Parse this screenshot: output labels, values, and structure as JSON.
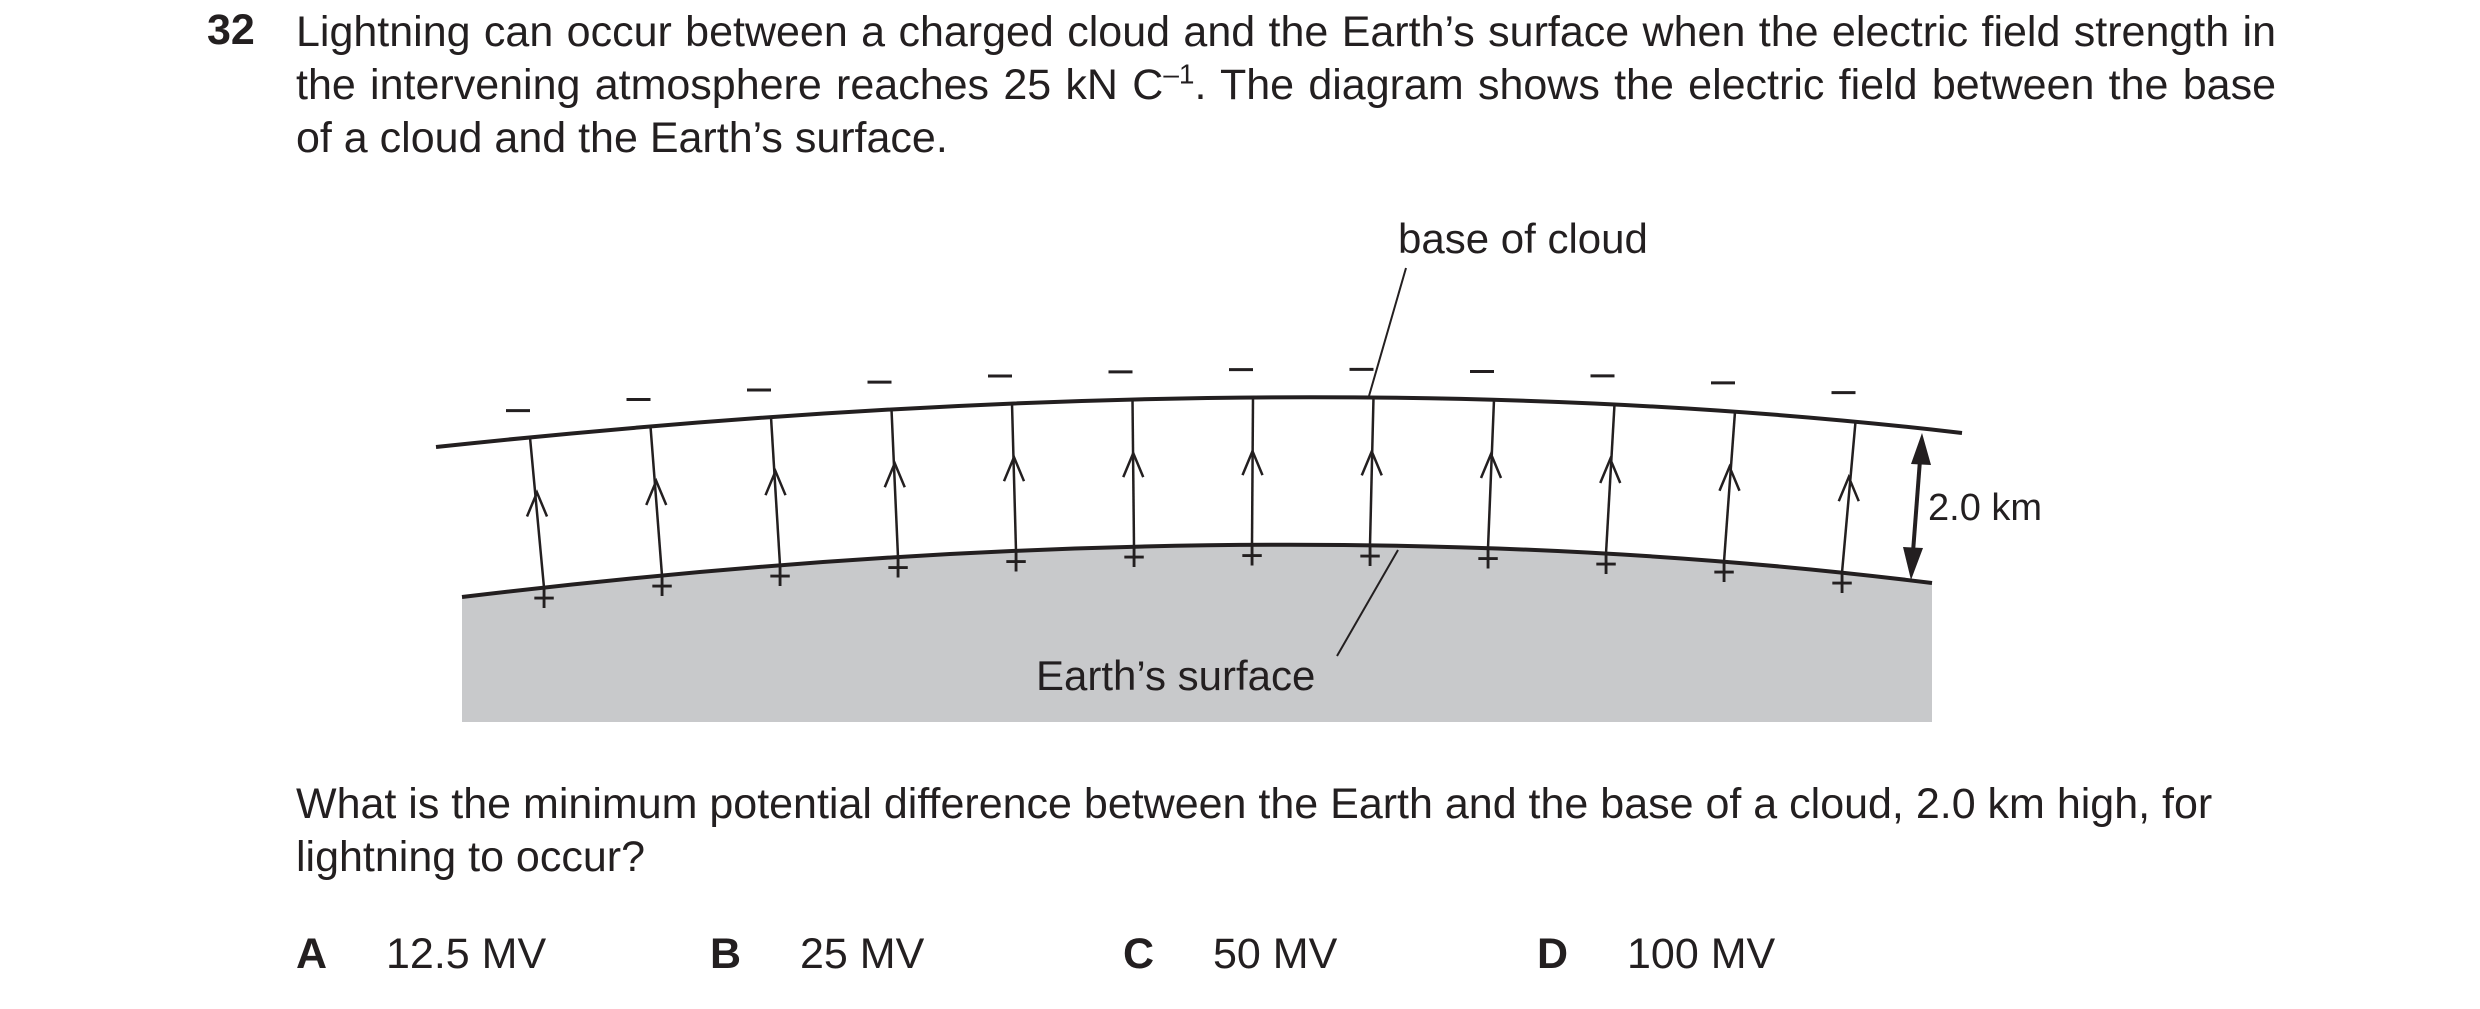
{
  "question": {
    "number": "32",
    "stem_part1": "Lightning can occur between a charged cloud and the Earth’s surface when the electric field strength in the intervening atmosphere reaches 25 kN C",
    "stem_sup": "–1",
    "stem_part2": ". The diagram shows the electric field between the base of a cloud and the Earth’s surface.",
    "prompt": "What is the minimum potential difference between the Earth and the base of a cloud, 2.0 km high, for lightning to occur?"
  },
  "diagram": {
    "cloud_label": "base of cloud",
    "earth_label": "Earth’s surface",
    "height_label": "2.0 km",
    "negative_sign": "–",
    "positive_sign": "+",
    "field_line_count": 12,
    "colors": {
      "earth_fill": "#c8c9cb",
      "ink": "#231f20"
    }
  },
  "options": [
    {
      "letter": "A",
      "value": "12.5 MV"
    },
    {
      "letter": "B",
      "value": "25 MV"
    },
    {
      "letter": "C",
      "value": "50 MV"
    },
    {
      "letter": "D",
      "value": "100 MV"
    }
  ]
}
